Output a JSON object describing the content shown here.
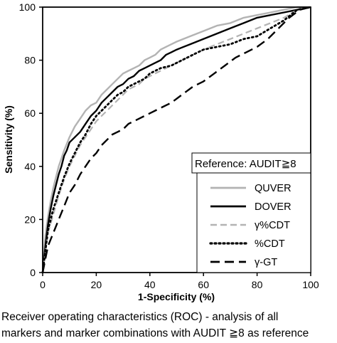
{
  "chart_data": {
    "type": "line",
    "xlabel": "1-Specificity (%)",
    "ylabel": "Sensitivity (%)",
    "xlim": [
      0,
      100
    ],
    "ylim": [
      0,
      100
    ],
    "xticks": [
      0,
      20,
      40,
      60,
      80,
      100
    ],
    "yticks": [
      0,
      20,
      40,
      60,
      80,
      100
    ],
    "grid": false,
    "legend_title": "Reference: AUDIT≧8",
    "legend_position": "bottom-right",
    "series": [
      {
        "name": "QUVER",
        "color": "#b3b3b3",
        "dash": "solid",
        "x": [
          0,
          1,
          2,
          3,
          4,
          5,
          6,
          7,
          8,
          10,
          12,
          14,
          16,
          18,
          20,
          22,
          24,
          26,
          28,
          30,
          32,
          34,
          36,
          38,
          40,
          42,
          44,
          46,
          48,
          50,
          55,
          60,
          65,
          70,
          75,
          80,
          85,
          90,
          95,
          100
        ],
        "y": [
          0,
          14,
          21,
          27,
          32,
          36,
          40,
          43,
          46,
          51,
          55,
          58,
          61,
          63,
          64,
          67,
          69,
          71,
          73,
          75,
          76,
          77,
          78,
          80,
          81,
          82,
          84,
          85,
          86,
          87,
          89,
          91,
          93,
          94,
          96,
          97,
          98,
          99,
          100,
          100
        ]
      },
      {
        "name": "DOVER",
        "color": "#000000",
        "dash": "solid",
        "x": [
          0,
          1,
          2,
          3,
          4,
          5,
          6,
          7,
          8,
          9,
          10,
          12,
          14,
          16,
          18,
          20,
          22,
          24,
          26,
          28,
          30,
          32,
          34,
          36,
          38,
          40,
          42,
          44,
          46,
          48,
          50,
          55,
          60,
          65,
          70,
          75,
          80,
          85,
          90,
          95,
          100
        ],
        "y": [
          0,
          10,
          18,
          24,
          29,
          33,
          37,
          40,
          44,
          46,
          49,
          51,
          53,
          56,
          59,
          61,
          64,
          66,
          68,
          70,
          71,
          73,
          74,
          76,
          77,
          78,
          79,
          80,
          82,
          83,
          84,
          86,
          88,
          90,
          92,
          94,
          96,
          97,
          98,
          99,
          100
        ]
      },
      {
        "name": "γ%CDT",
        "color": "#b3b3b3",
        "dash": "dash",
        "x": [
          0,
          2,
          4,
          6,
          8,
          10,
          12,
          14,
          16,
          18,
          20,
          22,
          24,
          26,
          28,
          30,
          32,
          34,
          36,
          38,
          40,
          44,
          48,
          52,
          56,
          60,
          65,
          70,
          75,
          80,
          85,
          90,
          95,
          100
        ],
        "y": [
          0,
          15,
          22,
          29,
          35,
          40,
          44,
          48,
          51,
          54,
          57,
          59,
          61,
          63,
          65,
          67,
          69,
          70,
          71,
          73,
          74,
          76,
          78,
          80,
          82,
          84,
          86,
          88,
          90,
          92,
          94,
          96,
          99,
          100
        ]
      },
      {
        "name": "%CDT",
        "color": "#000000",
        "dash": "dot",
        "x": [
          0,
          2,
          4,
          6,
          8,
          10,
          12,
          14,
          16,
          18,
          20,
          22,
          24,
          26,
          28,
          30,
          32,
          34,
          36,
          38,
          40,
          44,
          48,
          52,
          56,
          60,
          65,
          70,
          75,
          80,
          85,
          90,
          95,
          100
        ],
        "y": [
          0,
          16,
          24,
          30,
          36,
          41,
          45,
          49,
          52,
          56,
          59,
          61,
          63,
          65,
          67,
          68,
          70,
          71,
          72,
          73,
          75,
          77,
          78,
          80,
          82,
          84,
          85,
          86,
          88,
          89,
          92,
          95,
          99,
          100
        ]
      },
      {
        "name": "γ-GT",
        "color": "#000000",
        "dash": "longdash",
        "x": [
          0,
          2,
          4,
          6,
          8,
          10,
          12,
          14,
          16,
          18,
          20,
          22,
          24,
          26,
          28,
          30,
          32,
          34,
          36,
          38,
          40,
          44,
          48,
          52,
          56,
          60,
          64,
          68,
          72,
          76,
          80,
          84,
          88,
          92,
          96,
          100
        ],
        "y": [
          0,
          10,
          15,
          20,
          25,
          30,
          33,
          37,
          40,
          43,
          45,
          48,
          50,
          52,
          53,
          54,
          56,
          57,
          58,
          59,
          60,
          62,
          64,
          67,
          70,
          72,
          75,
          78,
          81,
          83,
          85,
          88,
          92,
          96,
          99,
          100
        ]
      }
    ]
  },
  "caption": {
    "line1": "Receiver operating characteristics (ROC) - analysis of all",
    "line2": "markers and marker combinations with AUDIT ≧8 as reference"
  }
}
